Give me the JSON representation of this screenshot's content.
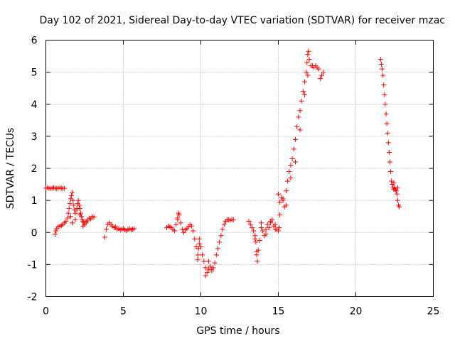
{
  "chart_data": {
    "type": "scatter",
    "title": "Day 102 of 2021, Sidereal Day-to-day VTEC variation (SDTVAR) for receiver mzac",
    "xlabel": "GPS time / hours",
    "ylabel": "SDTVAR / TECUs",
    "xlim": [
      0,
      25
    ],
    "ylim": [
      -2,
      6
    ],
    "xticks": [
      "0",
      "5",
      "10",
      "15",
      "20",
      "25"
    ],
    "yticks": [
      "-2",
      "-1",
      "0",
      "1",
      "2",
      "3",
      "4",
      "5",
      "6"
    ],
    "grid": true,
    "marker": "plus",
    "color": "#ff0000",
    "series": [
      {
        "x": [
          0.0,
          0.1,
          0.2,
          0.3,
          0.4,
          0.5,
          0.6,
          0.7,
          0.8,
          0.9,
          1.0,
          1.1,
          1.2,
          0.6,
          0.65,
          0.7,
          0.8,
          0.9,
          1.0,
          1.1,
          1.2,
          1.3,
          1.4,
          1.45,
          1.5,
          1.55,
          1.6,
          1.65,
          1.7,
          1.75,
          1.8,
          1.85,
          1.9,
          2.0,
          2.05,
          2.1,
          2.15,
          2.2,
          2.25,
          2.3,
          2.35,
          2.4,
          2.45,
          2.5,
          2.6,
          2.7,
          2.8,
          2.9,
          3.0,
          3.1,
          1.6,
          1.7,
          1.9,
          2.0,
          2.2,
          2.4,
          2.6,
          3.8,
          3.9,
          4.0,
          4.1,
          4.2,
          4.3,
          4.4,
          4.5,
          4.6,
          4.7,
          4.8,
          4.9,
          5.0,
          5.1,
          5.2,
          5.3,
          5.4,
          5.5,
          5.6,
          5.7,
          7.8,
          7.9,
          8.0,
          8.1,
          8.2,
          8.3,
          8.4,
          8.5,
          8.6,
          8.7,
          8.8,
          8.9,
          9.0,
          9.1,
          9.2,
          9.3,
          9.4,
          9.5,
          9.6,
          9.7,
          9.8,
          9.85,
          9.9,
          10.0,
          10.1,
          10.2,
          10.3,
          10.4,
          10.5,
          10.6,
          10.7,
          10.8,
          10.9,
          11.0,
          11.1,
          11.2,
          11.3,
          11.4,
          11.5,
          11.6,
          11.7,
          11.8,
          11.9,
          12.0,
          12.1,
          8.5,
          8.55,
          9.8,
          9.9,
          10.3,
          10.5,
          10.7,
          13.1,
          13.2,
          13.3,
          13.4,
          13.5,
          13.55,
          13.6,
          13.65,
          13.7,
          13.8,
          13.9,
          14.0,
          14.1,
          14.2,
          14.3,
          14.4,
          14.5,
          14.6,
          14.7,
          14.8,
          14.9,
          15.0,
          15.05,
          13.5,
          13.6,
          13.9,
          14.2,
          14.5,
          14.8,
          15.0,
          15.1,
          15.2,
          15.3,
          15.4,
          15.5,
          15.6,
          15.7,
          15.8,
          15.9,
          16.0,
          16.1,
          16.2,
          16.3,
          16.4,
          16.5,
          16.6,
          16.7,
          16.8,
          16.85,
          16.9,
          16.95,
          17.0,
          17.1,
          17.2,
          17.3,
          17.4,
          17.5,
          17.6,
          17.7,
          17.8,
          17.9,
          15.1,
          15.3,
          15.5,
          15.8,
          16.1,
          16.4,
          16.7,
          16.9,
          21.6,
          21.65,
          21.7,
          21.75,
          21.8,
          21.85,
          21.9,
          21.95,
          22.0,
          22.05,
          22.1,
          22.15,
          22.2,
          22.25,
          22.3,
          22.35,
          22.4,
          22.45,
          22.5,
          22.55,
          22.6,
          22.65,
          22.7,
          22.75,
          22.8,
          22.45,
          22.6,
          22.7
        ],
        "y": [
          1.38,
          1.4,
          1.38,
          1.37,
          1.38,
          1.4,
          1.38,
          1.37,
          1.38,
          1.4,
          1.38,
          1.37,
          1.38,
          -0.05,
          0.05,
          0.12,
          0.18,
          0.2,
          0.22,
          0.25,
          0.3,
          0.35,
          0.45,
          0.6,
          0.75,
          0.9,
          1.05,
          1.15,
          1.25,
          1.0,
          0.85,
          0.7,
          0.6,
          0.75,
          0.9,
          1.0,
          0.85,
          0.75,
          0.6,
          0.5,
          0.4,
          0.35,
          0.3,
          0.25,
          0.3,
          0.38,
          0.45,
          0.42,
          0.5,
          0.48,
          0.5,
          0.3,
          0.4,
          0.7,
          0.55,
          0.2,
          0.35,
          -0.15,
          0.1,
          0.25,
          0.3,
          0.25,
          0.2,
          0.15,
          0.18,
          0.1,
          0.12,
          0.08,
          0.1,
          0.12,
          0.08,
          0.05,
          0.1,
          0.12,
          0.08,
          0.1,
          0.12,
          0.15,
          0.2,
          0.18,
          0.15,
          0.1,
          0.05,
          0.25,
          0.45,
          0.55,
          0.3,
          0.1,
          0.0,
          0.08,
          0.12,
          0.18,
          0.25,
          0.2,
          0.05,
          -0.2,
          -0.45,
          -0.7,
          -0.5,
          -0.35,
          -0.45,
          -0.7,
          -0.9,
          -1.1,
          -1.25,
          -1.15,
          -1.05,
          -1.2,
          -1.1,
          -0.95,
          -0.7,
          -0.5,
          -0.3,
          -0.1,
          0.1,
          0.25,
          0.35,
          0.4,
          0.4,
          0.38,
          0.4,
          0.4,
          0.4,
          0.6,
          -0.85,
          -0.2,
          -1.35,
          -0.9,
          -1.15,
          0.35,
          0.25,
          0.15,
          0.05,
          -0.1,
          -0.3,
          -0.6,
          -0.9,
          -0.55,
          -0.25,
          0.15,
          0.05,
          -0.1,
          0.1,
          0.25,
          0.15,
          0.3,
          0.4,
          0.2,
          0.25,
          0.1,
          0.05,
          0.15,
          -0.2,
          -0.7,
          0.3,
          -0.05,
          0.35,
          0.1,
          1.2,
          0.95,
          1.1,
          1.0,
          0.8,
          1.3,
          1.6,
          1.9,
          2.1,
          2.3,
          2.6,
          2.9,
          3.3,
          3.6,
          3.8,
          4.1,
          4.4,
          4.7,
          5.0,
          5.3,
          5.55,
          5.65,
          5.4,
          5.2,
          5.2,
          5.15,
          5.2,
          5.15,
          5.1,
          4.8,
          4.9,
          5.0,
          0.55,
          1.05,
          0.85,
          1.7,
          2.2,
          3.2,
          4.3,
          4.9,
          5.4,
          5.25,
          5.1,
          4.9,
          4.6,
          4.3,
          4.0,
          3.7,
          3.4,
          3.1,
          2.8,
          2.5,
          2.2,
          1.9,
          1.6,
          1.5,
          1.4,
          1.35,
          1.4,
          1.35,
          1.3,
          1.2,
          1.0,
          0.85,
          0.8,
          1.55,
          1.3,
          1.4
        ]
      }
    ]
  }
}
